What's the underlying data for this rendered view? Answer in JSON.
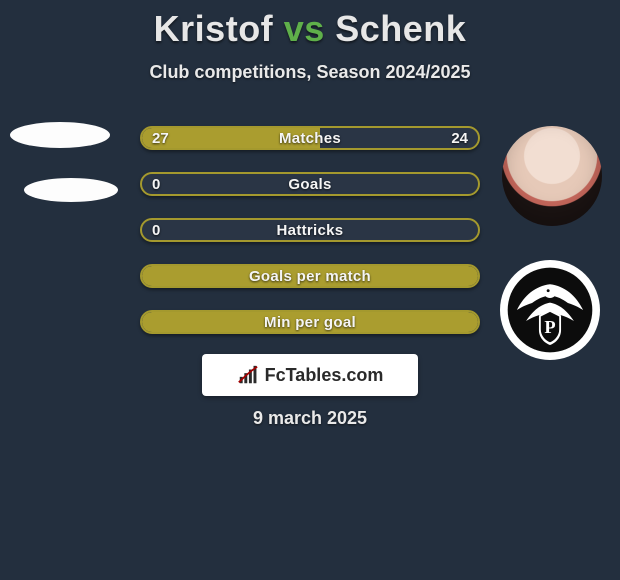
{
  "title": {
    "left": "Kristof",
    "vs": "vs",
    "right": "Schenk"
  },
  "subtitle": "Club competitions, Season 2024/2025",
  "accent_color": "#aa9d2f",
  "border_color": "#a4992e",
  "bars": [
    {
      "label": "Matches",
      "left": "27",
      "right": "24",
      "fill_pct": 53
    },
    {
      "label": "Goals",
      "left": "0",
      "right": "",
      "fill_pct": 0
    },
    {
      "label": "Hattricks",
      "left": "0",
      "right": "",
      "fill_pct": 0
    },
    {
      "label": "Goals per match",
      "left": "",
      "right": "",
      "fill_pct": 100
    },
    {
      "label": "Min per goal",
      "left": "",
      "right": "",
      "fill_pct": 100
    }
  ],
  "site_tag": "FcTables.com",
  "date": "9 march 2025",
  "colors": {
    "background": "#232f3e",
    "title_text": "#e7e7e7",
    "vs_text": "#5fb04a",
    "white": "#ffffff"
  }
}
